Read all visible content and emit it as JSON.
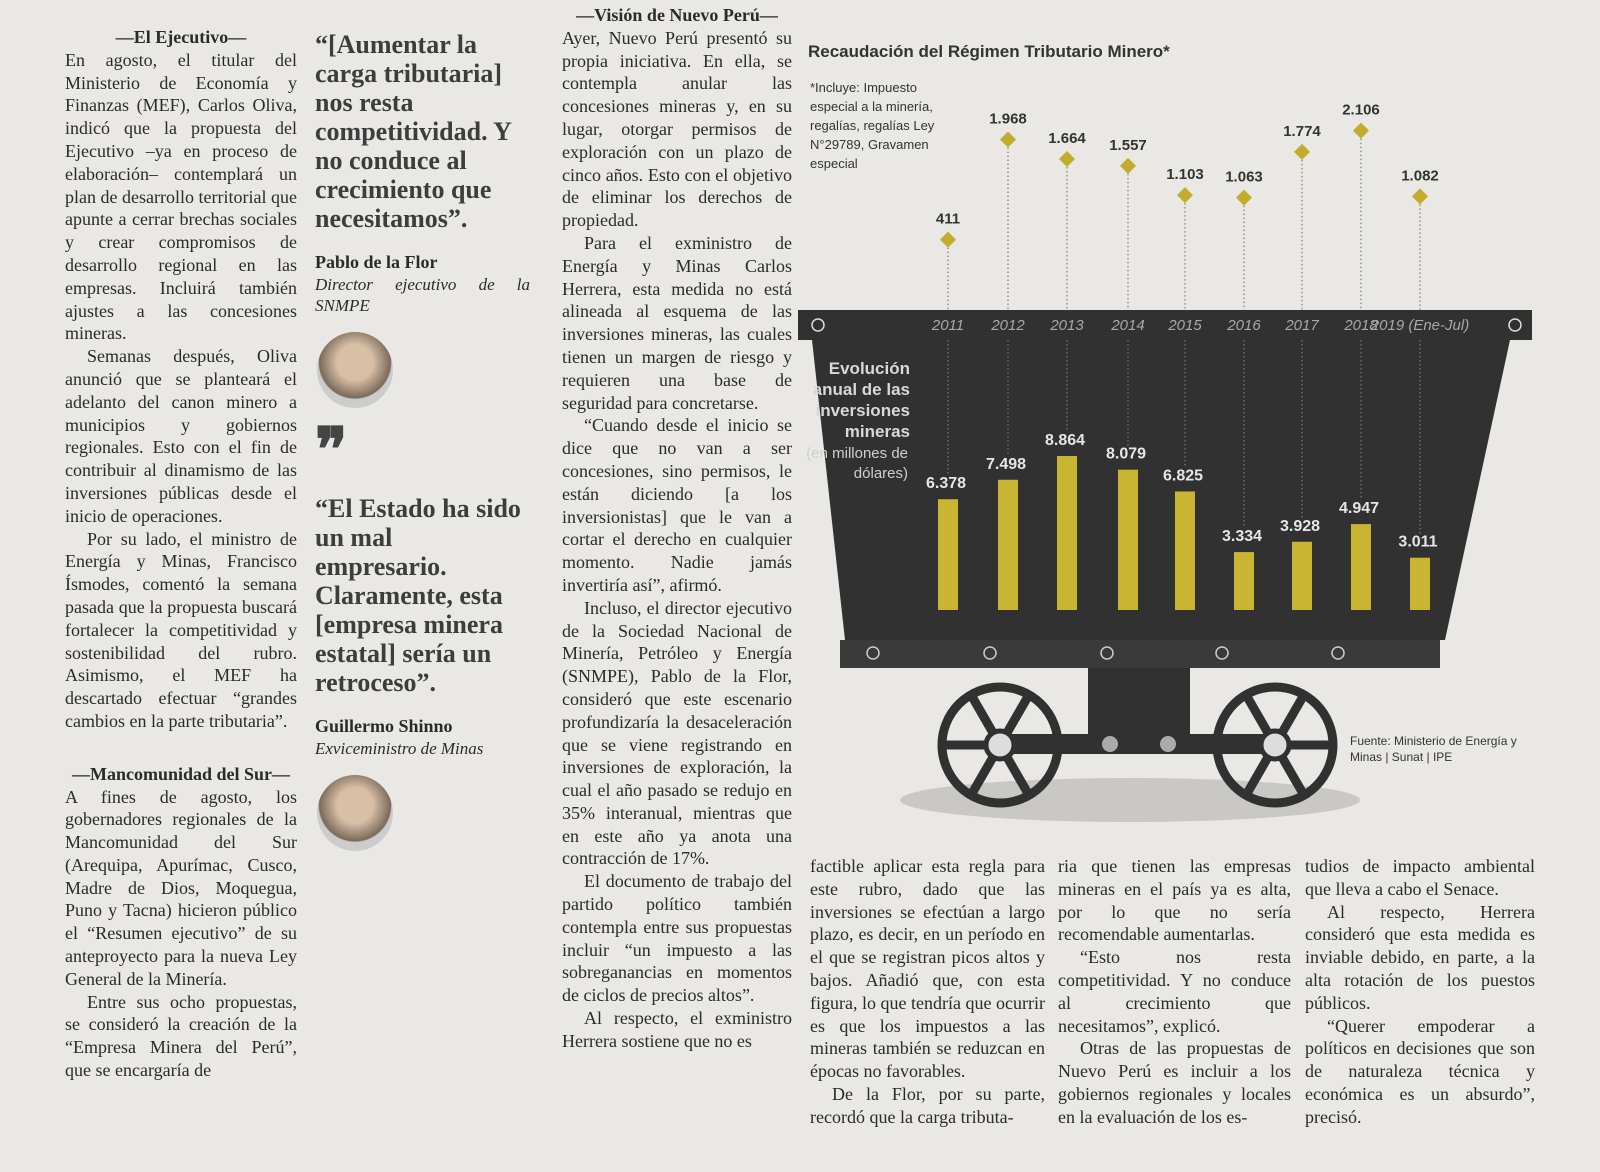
{
  "col1": {
    "heading1": "—El Ejecutivo—",
    "p1": "En agosto, el titular del Ministerio de Economía y Finanzas (MEF), Carlos Oliva, indicó que la propuesta del Ejecutivo –ya en proceso de elaboración– contemplará un plan de desarrollo territorial que apunte a cerrar brechas sociales y crear compromisos de desarrollo regional en las empresas. Incluirá también ajustes a las concesiones mineras.",
    "p2": "Semanas después, Oliva anunció que se planteará el adelanto del canon minero a municipios y gobiernos regionales. Esto con el fin de contribuir al dinamismo de las inversiones públicas desde el inicio de operaciones.",
    "p3": "Por su lado, el ministro de Energía y Minas, Francisco Ísmodes, comentó la semana pasada que la propuesta buscará fortalecer la competitividad y sostenibilidad del rubro. Asimismo, el MEF ha descartado efectuar “grandes cambios en la parte tributaria”.",
    "heading2": "—Mancomunidad del Sur—",
    "p4": "A fines de agosto, los gobernadores regionales de la Mancomunidad del Sur (Arequipa, Apurímac, Cusco, Madre de Dios, Moquegua, Puno y Tacna) hicieron público el “Resumen ejecutivo” de su anteproyecto para la nueva Ley General de la Minería.",
    "p5": "Entre sus ocho propuestas, se consideró la creación de la “Empresa Minera del Perú”, que se encargaría de"
  },
  "col2": {
    "quote1": "“[Aumentar la carga tributaria] nos resta competitividad. Y no conduce al crecimiento que necesitamos”.",
    "name1": "Pablo de la Flor",
    "role1": "Director ejecutivo de la SNMPE",
    "quote2": "“El Estado ha sido un mal empresario. Claramente, esta [empresa minera estatal] sería un retroceso”.",
    "name2": "Guillermo Shinno",
    "role2": "Exviceministro de Minas"
  },
  "col3": {
    "heading": "—Visión de Nuevo Perú—",
    "p1": "Ayer, Nuevo Perú presentó su propia iniciativa. En ella, se contempla anular las concesiones mineras y, en su lugar, otorgar permisos de exploración con un plazo de cinco años. Esto con el objetivo de eliminar los derechos de propiedad.",
    "p2": "Para el exministro de Energía y Minas Carlos Herrera, esta medida no está alineada al esquema de las inversiones mineras, las cuales tienen un margen de riesgo y requieren una base de seguridad para concretarse.",
    "p3": "“Cuando desde el inicio se dice que no van a ser concesiones, sino permisos, le están diciendo [a los inversionistas] que le van a cortar el derecho en cualquier momento. Nadie jamás invertiría así”, afirmó.",
    "p4": "Incluso, el director ejecutivo de la Sociedad Nacional de Minería, Petróleo y Energía (SNMPE), Pablo de la Flor, consideró que este escenario profundizaría la desaceleración que se viene registrando en inversiones de exploración, la cual el año pasado se redujo en 35% interanual, mientras que en este año ya anota una contracción de 17%.",
    "p5": "El documento de trabajo del partido político también contempla entre sus propuestas incluir “un impuesto a las sobreganancias en momentos de ciclos de precios altos”.",
    "p6": "Al respecto, el exministro Herrera sostiene que no es"
  },
  "bottom1": {
    "p1": "factible aplicar esta regla para este rubro, dado que las inversiones se efectúan a largo plazo, es decir, en un período en el que se registran picos altos y bajos. Añadió que, con esta figura, lo que tendría que ocurrir es que los impuestos a las mineras también se reduzcan en épocas no favorables.",
    "p2": "De la Flor, por su parte, recordó que la carga tributa-"
  },
  "bottom2": {
    "p1": "ria que tienen las empresas mineras en el país ya es alta, por lo que no sería recomendable aumentarlas.",
    "p2": "“Esto nos resta competitividad. Y no conduce al crecimiento que necesitamos”, explicó.",
    "p3": "Otras de las propuestas de Nuevo Perú es incluir a los gobiernos regionales y locales en la evaluación de los es-"
  },
  "bottom3": {
    "p1": "tudios de impacto ambiental que lleva a cabo el Senace.",
    "p2": "Al respecto, Herrera consideró que esta medida es inviable debido, en parte, a la alta rotación de los puestos públicos.",
    "p3": "“Querer empoderar a políticos en decisiones que son de naturaleza técnica y económica es un absurdo”, precisó."
  },
  "chart": {
    "type": "bar",
    "title": "Recaudación del Régimen Tributario Minero*",
    "note": "*Incluye: Impuesto especial a la minería, regalías, regalías Ley N°29789, Gravamen especial",
    "inner_title": "Evolución anual de las inversiones mineras",
    "inner_subtitle": "(en millones de dólares)",
    "source": "Fuente: Ministerio de Energía y Minas | Sunat | IPE",
    "categories": [
      "2011",
      "2012",
      "2013",
      "2014",
      "2015",
      "2016",
      "2017",
      "2018",
      "2019 (Ene-Jul)"
    ],
    "series": [
      {
        "color": "#c2ac2c",
        "values": [
          411,
          1968,
          1664,
          1557,
          1103,
          1063,
          1774,
          2106,
          1082
        ],
        "value_labels": [
          "411",
          "1.968",
          "1.664",
          "1.557",
          "1.103",
          "1.063",
          "1.774",
          "2.106",
          "1.082"
        ]
      },
      {
        "color": "#c9b532",
        "values": [
          6378,
          7498,
          8864,
          8079,
          6825,
          3334,
          3928,
          4947,
          3011
        ],
        "value_labels": [
          "6.378",
          "7.498",
          "8.864",
          "8.079",
          "6.825",
          "3.334",
          "3.928",
          "4.947",
          "3.011"
        ]
      }
    ]
  }
}
